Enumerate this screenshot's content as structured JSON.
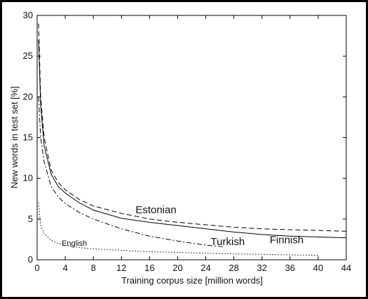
{
  "chart_data": {
    "type": "line",
    "xlabel": "Training corpus size [million words]",
    "ylabel": "New words in test set [%]",
    "xlim": [
      0,
      44
    ],
    "ylim": [
      0,
      30
    ],
    "xticks": [
      0,
      4,
      8,
      12,
      16,
      20,
      24,
      28,
      32,
      36,
      40,
      44
    ],
    "yticks": [
      0,
      5,
      10,
      15,
      20,
      25,
      30
    ],
    "grid": false,
    "legend": "none",
    "series": [
      {
        "name": "Estonian",
        "style": "dashed",
        "x": [
          0.2,
          0.5,
          1,
          2,
          3,
          4,
          6,
          8,
          12,
          16,
          20,
          24,
          28,
          32,
          36,
          40,
          44
        ],
        "y": [
          29,
          20,
          15,
          11,
          9.5,
          8.6,
          7.4,
          6.6,
          5.7,
          5.0,
          4.6,
          4.3,
          4.0,
          3.8,
          3.7,
          3.6,
          3.5
        ]
      },
      {
        "name": "Finnish",
        "style": "solid",
        "x": [
          0.2,
          0.5,
          1,
          2,
          3,
          4,
          6,
          8,
          12,
          16,
          20,
          24,
          28,
          32,
          36,
          40,
          44
        ],
        "y": [
          27,
          19,
          14,
          10.5,
          9,
          8.2,
          7.0,
          6.1,
          5.1,
          4.6,
          4.2,
          3.8,
          3.4,
          3.1,
          2.9,
          2.8,
          2.7
        ]
      },
      {
        "name": "Turkish",
        "style": "dashdot",
        "x": [
          0.2,
          0.5,
          1,
          2,
          3,
          4,
          6,
          8,
          12,
          16,
          20,
          24,
          26.5
        ],
        "y": [
          20,
          15,
          12,
          9,
          7.7,
          6.9,
          5.8,
          5.0,
          3.8,
          2.9,
          2.3,
          1.8,
          1.6
        ]
      },
      {
        "name": "English",
        "style": "dotted",
        "x": [
          0.2,
          0.5,
          1,
          2,
          3,
          4,
          6,
          8,
          12,
          16,
          20,
          24,
          28,
          32,
          36,
          40
        ],
        "y": [
          7,
          4.2,
          3.2,
          2.4,
          2.0,
          1.8,
          1.5,
          1.35,
          1.15,
          1.0,
          0.9,
          0.8,
          0.72,
          0.66,
          0.6,
          0.55
        ]
      }
    ],
    "annotations": [
      {
        "text": "Estonian",
        "x": 14.0,
        "y": 5.7,
        "size": 15
      },
      {
        "text": "Turkish",
        "x": 24.7,
        "y": 1.8,
        "size": 15
      },
      {
        "text": "Finnish",
        "x": 33.1,
        "y": 2.0,
        "size": 15
      },
      {
        "text": "English",
        "x": 3.5,
        "y": 1.7,
        "size": 11
      }
    ]
  }
}
